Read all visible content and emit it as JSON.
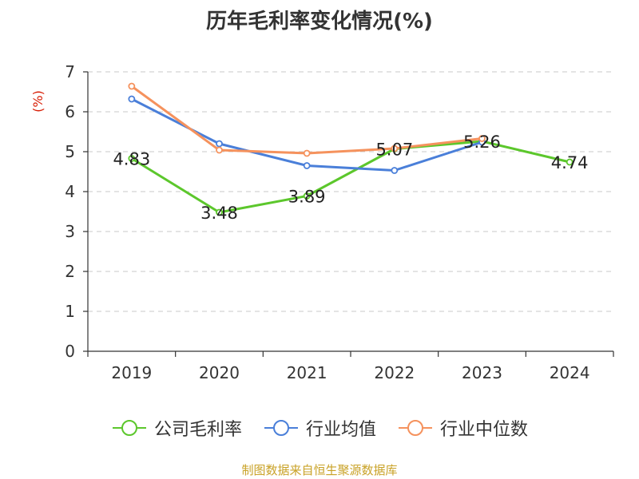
{
  "title": "历年毛利率变化情况(%)",
  "source_note": "制图数据来自恒生聚源数据库",
  "chart_data": {
    "type": "line",
    "title": "历年毛利率变化情况(%)",
    "ylabel": "(%)",
    "xlabel": "",
    "categories": [
      "2019",
      "2020",
      "2021",
      "2022",
      "2023",
      "2024"
    ],
    "ylim": [
      0,
      7
    ],
    "yticks": [
      0,
      1,
      2,
      3,
      4,
      5,
      6,
      7
    ],
    "grid": true,
    "legend_position": "bottom",
    "series": [
      {
        "name": "公司毛利率",
        "color": "#5cc72c",
        "values": [
          4.83,
          3.48,
          3.89,
          5.07,
          5.26,
          4.74
        ],
        "labels": [
          "4.83",
          "3.48",
          "3.89",
          "5.07",
          "5.26",
          "4.74"
        ]
      },
      {
        "name": "行业均值",
        "color": "#4a7fd9",
        "values": [
          6.32,
          5.2,
          4.65,
          4.53,
          5.24,
          null
        ]
      },
      {
        "name": "行业中位数",
        "color": "#f5925d",
        "values": [
          6.64,
          5.04,
          4.96,
          5.08,
          5.33,
          null
        ]
      }
    ]
  }
}
